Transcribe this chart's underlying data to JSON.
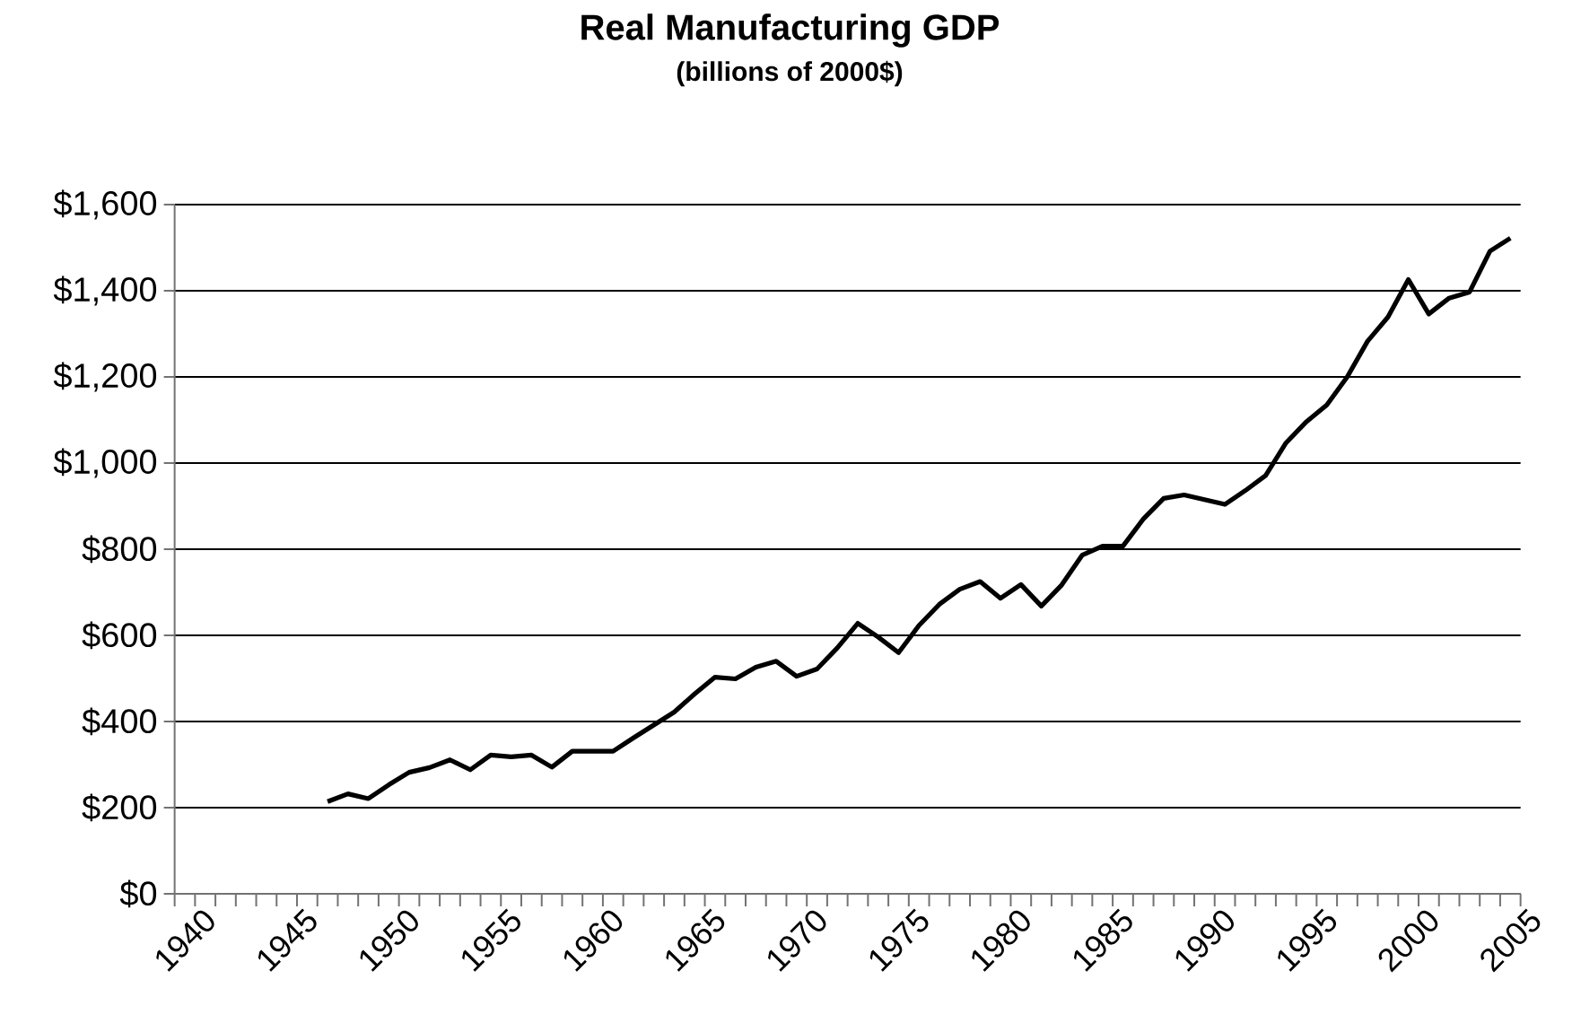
{
  "chart_data": {
    "type": "line",
    "title": "Real Manufacturing GDP",
    "subtitle": "(billions of 2000$)",
    "categories": [
      "1940",
      null,
      null,
      null,
      null,
      "1945",
      null,
      null,
      null,
      null,
      "1950",
      null,
      null,
      null,
      null,
      "1955",
      null,
      null,
      null,
      null,
      "1960",
      null,
      null,
      null,
      null,
      "1965",
      null,
      null,
      null,
      null,
      "1970",
      null,
      null,
      null,
      null,
      "1975",
      null,
      null,
      null,
      null,
      "1980",
      null,
      null,
      null,
      null,
      "1985",
      null,
      null,
      null,
      null,
      "1990",
      null,
      null,
      null,
      null,
      "1995",
      null,
      null,
      null,
      null,
      "2000",
      null,
      null,
      null,
      null,
      "2005"
    ],
    "series": [
      {
        "color": "#000000",
        "values": [
          null,
          null,
          null,
          null,
          null,
          null,
          null,
          214,
          232,
          221,
          253,
          282,
          293,
          311,
          288,
          322,
          318,
          322,
          294,
          331,
          331,
          331,
          362,
          392,
          422,
          464,
          503,
          499,
          526,
          540,
          505,
          522,
          571,
          628,
          596,
          560,
          623,
          672,
          707,
          725,
          686,
          718,
          668,
          717,
          786,
          807,
          807,
          870,
          918,
          926,
          915,
          904,
          936,
          971,
          1047,
          1096,
          1135,
          1200,
          1283,
          1339,
          1426,
          1346,
          1383,
          1397,
          1492,
          1522
        ]
      }
    ],
    "ylim": [
      0,
      1600
    ],
    "yticks": [
      {
        "value": 0,
        "label": "$0"
      },
      {
        "value": 200,
        "label": "$200"
      },
      {
        "value": 400,
        "label": "$400"
      },
      {
        "value": 600,
        "label": "$600"
      },
      {
        "value": 800,
        "label": "$800"
      },
      {
        "value": 1000,
        "label": "$1,000"
      },
      {
        "value": 1200,
        "label": "$1,200"
      },
      {
        "value": 1400,
        "label": "$1,400"
      },
      {
        "value": 1600,
        "label": "$1,600"
      }
    ],
    "grid": "y"
  }
}
